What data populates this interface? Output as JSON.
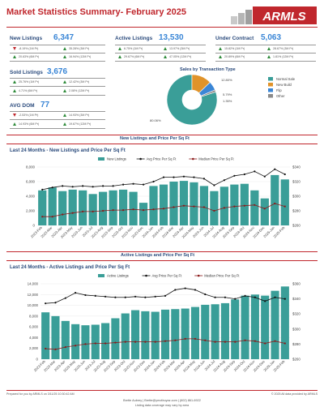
{
  "header": {
    "title": "Market Statistics Summary",
    "separator": "-",
    "period": "February 2025",
    "logo_text": "ARMLS"
  },
  "stats": {
    "new_listings": {
      "label": "New Listings",
      "value": "6,347",
      "c1": "-8.19% (1M Pr)",
      "c1_dir": "down",
      "c2": "35.28% (3M Pr)",
      "c2_dir": "up",
      "c3": "20.63% (6M Pr)",
      "c3_dir": "up",
      "c4": "16.94% (12M Pr)",
      "c4_dir": "up"
    },
    "active_listings": {
      "label": "Active Listings",
      "value": "13,530",
      "c1": "6.75% (1M Pr)",
      "c1_dir": "up",
      "c2": "13.97% (3M Pr)",
      "c2_dir": "up",
      "c3": "29.67% (6M Pr)",
      "c3_dir": "up",
      "c4": "47.05% (12M Pr)",
      "c4_dir": "up"
    },
    "under_contract": {
      "label": "Under Contract",
      "value": "5,063",
      "c1": "15.82% (1M Pr)",
      "c1_dir": "up",
      "c2": "28.67% (3M Pr)",
      "c2_dir": "up",
      "c3": "20.89% (6M Pr)",
      "c3_dir": "up",
      "c4": "1.81% (12M Pr)",
      "c4_dir": "up"
    },
    "sold_listings": {
      "label": "Sold Listings",
      "value": "3,676",
      "c1": "25.76% (1M Pr)",
      "c1_dir": "up",
      "c2": "12.42% (3M Pr)",
      "c2_dir": "up",
      "c3": "4.71% (6M Pr)",
      "c3_dir": "up",
      "c4": "2.08% (12M Pr)",
      "c4_dir": "up"
    },
    "avg_dom": {
      "label": "AVG DOM",
      "value": "77",
      "c1": "-2.53% (1M Pr)",
      "c1_dir": "down",
      "c2": "14.93% (3M Pr)",
      "c2_dir": "up",
      "c3": "14.93% (6M Pr)",
      "c3_dir": "up",
      "c4": "19.67% (12M Pr)",
      "c4_dir": "up"
    }
  },
  "pie": {
    "title": "Sales by Transaction Type",
    "colors": [
      "#3a9e98",
      "#e0932a",
      "#3a86d6",
      "#8a8a8a"
    ],
    "labels": [
      "80.06%",
      "12.80%",
      "5.79%",
      "1.35%"
    ]
  },
  "chart_data": [
    {
      "type": "pie",
      "title": "Sales by Transaction Type",
      "categories": [
        "Normal Sale",
        "New Build",
        "Flip",
        "Other"
      ],
      "values": [
        80.06,
        12.8,
        5.79,
        1.35
      ]
    },
    {
      "type": "bar",
      "title": "Last 24 Months - New Listings and Price Per Sq Ft",
      "categories": [
        "2023-Feb",
        "2023-Mar",
        "2023-Apr",
        "2023-May",
        "2023-Jun",
        "2023-Jul",
        "2023-Aug",
        "2023-Sep",
        "2023-Oct",
        "2023-Nov",
        "2023-Dec",
        "2024-Jan",
        "2024-Feb",
        "2024-Mar",
        "2024-Apr",
        "2024-May",
        "2024-Jun",
        "2024-Jul",
        "2024-Aug",
        "2024-Sep",
        "2024-Oct",
        "2024-Nov",
        "2024-Dec",
        "2025-Jan",
        "2025-Feb"
      ],
      "series": [
        {
          "name": "New Listings",
          "axis": "left",
          "color": "#3a9e98",
          "values": [
            4800,
            5200,
            4700,
            4900,
            4800,
            4300,
            4600,
            4800,
            4900,
            4600,
            3100,
            5400,
            5600,
            6000,
            6100,
            5900,
            5400,
            4700,
            5300,
            5600,
            5700,
            4800,
            3700,
            6900,
            6300
          ]
        },
        {
          "name": "Avg Price Per Sq Ft",
          "axis": "right",
          "color": "#111111",
          "values": [
            309,
            312,
            314,
            313,
            314,
            313,
            314,
            314,
            316,
            317,
            316,
            320,
            326,
            326,
            327,
            326,
            324,
            315,
            322,
            328,
            330,
            334,
            327,
            337,
            330
          ]
        },
        {
          "name": "Median Price Per Sq Ft",
          "axis": "right",
          "color": "#8b1a1a",
          "values": [
            272,
            272,
            275,
            277,
            279,
            279,
            280,
            281,
            281,
            282,
            281,
            282,
            283,
            285,
            287,
            286,
            285,
            280,
            284,
            286,
            287,
            288,
            283,
            290,
            286
          ]
        }
      ],
      "ylim_left": [
        0,
        8000
      ],
      "ylim_right": [
        260,
        340
      ],
      "yticks_left": [
        "0",
        "2,000",
        "4,000",
        "6,000",
        "8,000"
      ],
      "yticks_right": [
        "$260",
        "$280",
        "$300",
        "$320",
        "$340"
      ],
      "legend": "top"
    },
    {
      "type": "bar",
      "title": "Last 24 Months - Active Listings and Price Per Sq Ft",
      "categories": [
        "2023-Feb",
        "2023-Mar",
        "2023-Apr",
        "2023-May",
        "2023-Jun",
        "2023-Jul",
        "2023-Aug",
        "2023-Sep",
        "2023-Oct",
        "2023-Nov",
        "2023-Dec",
        "2024-Jan",
        "2024-Feb",
        "2024-Mar",
        "2024-Apr",
        "2024-May",
        "2024-Jun",
        "2024-Jul",
        "2024-Aug",
        "2024-Sep",
        "2024-Oct",
        "2024-Nov",
        "2024-Dec",
        "2025-Jan",
        "2025-Feb"
      ],
      "series": [
        {
          "name": "Active Listings",
          "axis": "left",
          "color": "#3a9e98",
          "values": [
            8700,
            8000,
            7100,
            6500,
            6300,
            6400,
            6700,
            7600,
            8500,
            9100,
            8900,
            8800,
            9200,
            9300,
            9400,
            9700,
            10100,
            10200,
            10400,
            11100,
            11800,
            12000,
            11800,
            12700,
            13500
          ]
        },
        {
          "name": "Avg Price Per Sq Ft",
          "axis": "right",
          "color": "#111111",
          "values": [
            334,
            335,
            341,
            348,
            345,
            344,
            343,
            342,
            342,
            343,
            342,
            343,
            344,
            352,
            354,
            352,
            346,
            342,
            342,
            340,
            344,
            342,
            337,
            342,
            340
          ]
        },
        {
          "name": "Median Price Per Sq Ft",
          "axis": "right",
          "color": "#8b1a1a",
          "values": [
            274,
            273,
            276,
            278,
            280,
            281,
            281,
            282,
            283,
            283,
            283,
            283,
            284,
            285,
            287,
            287,
            285,
            283,
            283,
            283,
            285,
            284,
            281,
            284,
            281
          ]
        }
      ],
      "ylim_left": [
        0,
        14000
      ],
      "ylim_right": [
        260,
        360
      ],
      "yticks_left": [
        "0",
        "2,000",
        "4,000",
        "6,000",
        "8,000",
        "10,000",
        "12,000",
        "14,000"
      ],
      "yticks_right": [
        "$260",
        "$280",
        "$300",
        "$320",
        "$340",
        "$360"
      ],
      "legend": "top"
    }
  ],
  "sections": {
    "new_band": "New Listings and Price Per Sq Ft",
    "active_band": "Active Listings and Price Per Sq Ft"
  },
  "footer": {
    "prepared": "Prepared for you by ARMLS on 3/11/25 10:30:42 AM",
    "copyright": "© 2025 All data provided by ARMLS",
    "contact": "Brette Aubrey | Brette@ymotbuyaz.com | (602) 861-6922",
    "disclaimer": "Listing data coverage may vary by area"
  }
}
